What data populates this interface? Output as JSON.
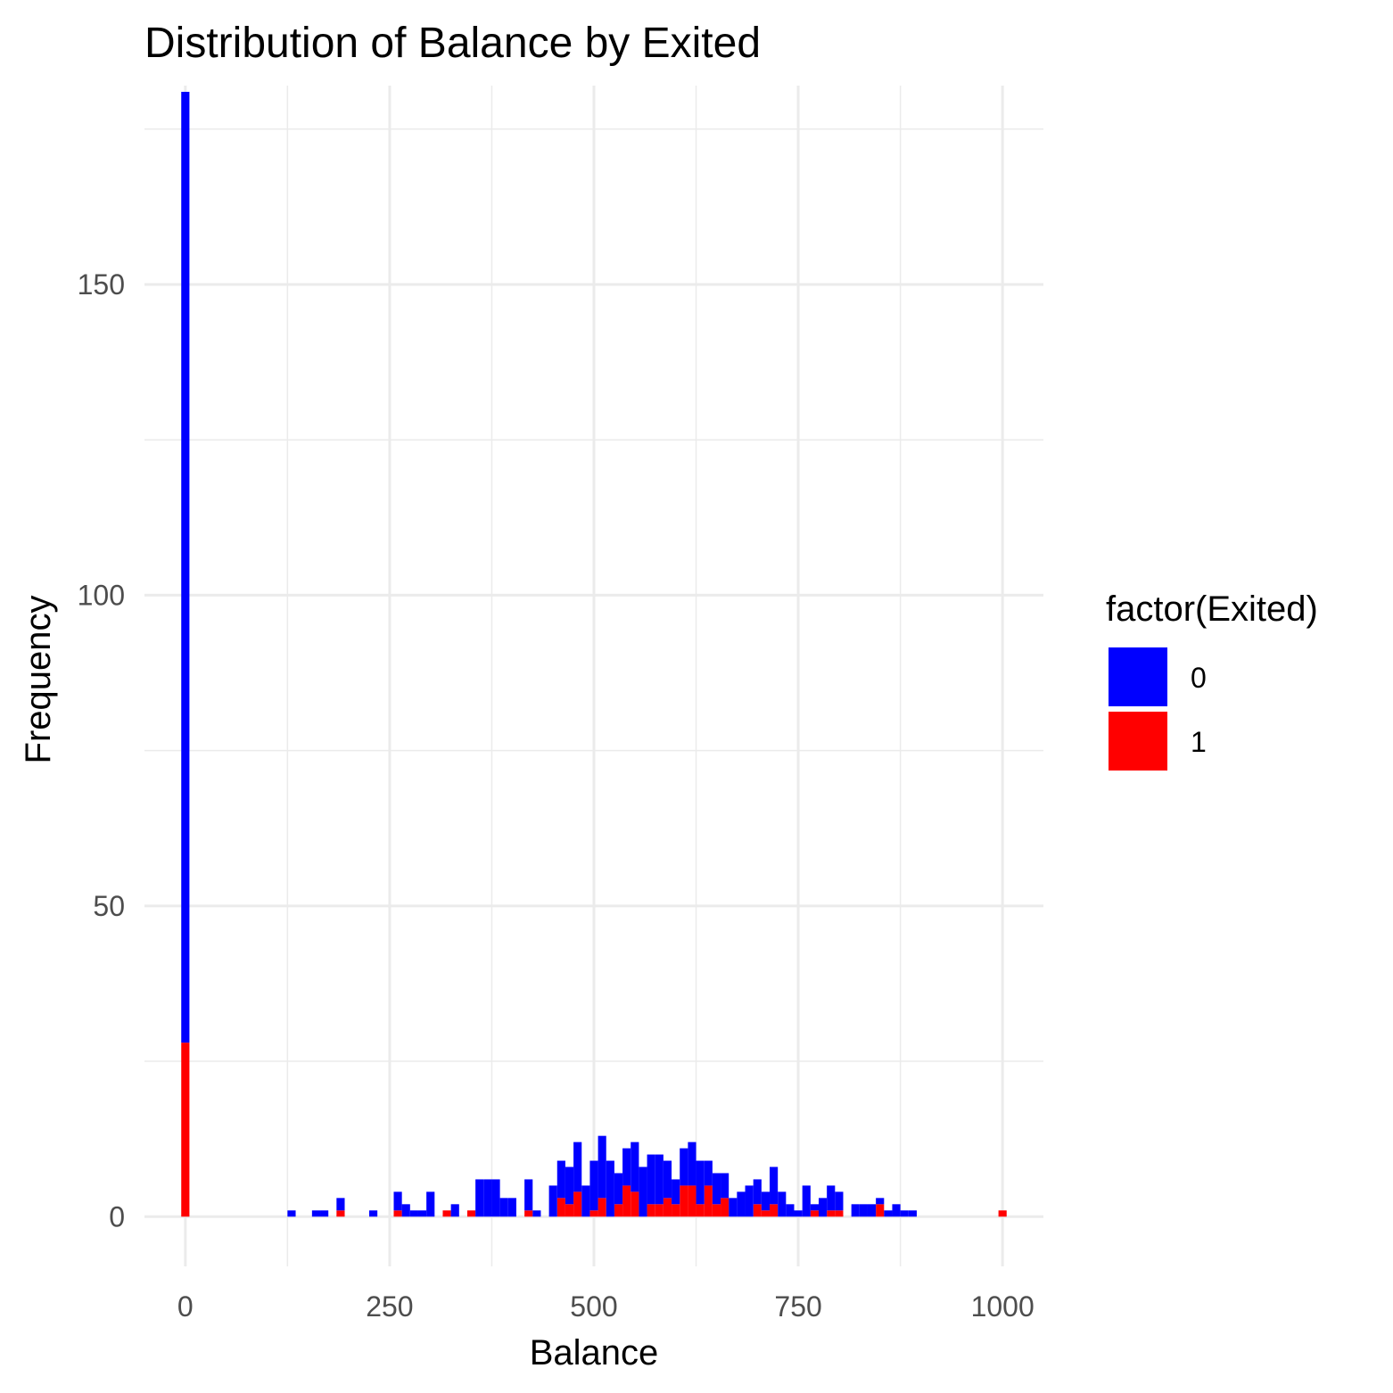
{
  "chart_data": {
    "type": "bar",
    "subtype": "stacked-histogram",
    "title": "Distribution of Balance by Exited",
    "xlabel": "Balance",
    "ylabel": "Frequency",
    "xlim": [
      -50,
      1050
    ],
    "ylim": [
      -8,
      182
    ],
    "x_ticks": [
      0,
      250,
      500,
      750,
      1000
    ],
    "y_ticks": [
      0,
      50,
      100,
      150
    ],
    "grid": true,
    "legend": {
      "title": "factor(Exited)",
      "position": "right"
    },
    "bin_width": 10,
    "series": [
      {
        "name": "0",
        "color": "#0000ff",
        "x": [
          0,
          130,
          160,
          170,
          190,
          230,
          260,
          270,
          280,
          290,
          300,
          330,
          360,
          370,
          380,
          390,
          400,
          420,
          430,
          450,
          460,
          470,
          480,
          490,
          500,
          510,
          520,
          530,
          540,
          550,
          560,
          570,
          580,
          590,
          600,
          610,
          620,
          630,
          640,
          650,
          660,
          670,
          680,
          690,
          700,
          710,
          720,
          730,
          740,
          750,
          760,
          770,
          780,
          790,
          800,
          820,
          830,
          840,
          850,
          860,
          870,
          880,
          890
        ],
        "values": [
          153,
          1,
          1,
          1,
          2,
          1,
          3,
          2,
          1,
          1,
          4,
          2,
          6,
          6,
          6,
          3,
          3,
          5,
          1,
          5,
          6,
          6,
          8,
          5,
          8,
          10,
          9,
          5,
          6,
          8,
          8,
          8,
          8,
          6,
          4,
          6,
          7,
          7,
          4,
          5,
          4,
          3,
          4,
          5,
          4,
          3,
          6,
          4,
          2,
          1,
          5,
          1,
          3,
          4,
          3,
          2,
          2,
          2,
          1,
          1,
          2,
          1,
          1
        ]
      },
      {
        "name": "1",
        "color": "#ff0000",
        "x": [
          0,
          190,
          260,
          320,
          350,
          420,
          460,
          470,
          480,
          500,
          510,
          530,
          540,
          550,
          570,
          580,
          590,
          600,
          610,
          620,
          630,
          640,
          650,
          660,
          700,
          710,
          720,
          770,
          790,
          800,
          850,
          1000
        ],
        "values": [
          28,
          1,
          1,
          1,
          1,
          1,
          3,
          2,
          4,
          1,
          3,
          2,
          5,
          4,
          2,
          2,
          3,
          2,
          5,
          5,
          2,
          5,
          2,
          3,
          2,
          1,
          2,
          1,
          1,
          1,
          2,
          1
        ]
      }
    ]
  }
}
